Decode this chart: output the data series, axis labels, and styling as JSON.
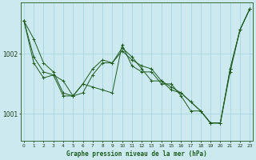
{
  "title": "Graphe pression niveau de la mer (hPa)",
  "background_color": "#cce9f0",
  "grid_color": "#a8d8e0",
  "line_color": "#1e5c1e",
  "x_ticks": [
    0,
    1,
    2,
    3,
    4,
    5,
    6,
    7,
    8,
    9,
    10,
    11,
    12,
    13,
    14,
    15,
    16,
    17,
    18,
    19,
    20,
    21,
    22,
    23
  ],
  "ylim": [
    1000.55,
    1002.85
  ],
  "yticks": [
    1001,
    1002
  ],
  "series": [
    [
      1002.55,
      1002.25,
      1001.85,
      1001.7,
      1001.35,
      1001.3,
      1001.5,
      1001.75,
      1001.9,
      1001.85,
      1002.05,
      1001.9,
      1001.8,
      1001.75,
      1001.55,
      1001.45,
      1001.35,
      1001.2,
      1001.05,
      1000.85,
      1000.85,
      1001.7,
      1002.4,
      1002.75
    ],
    [
      1002.55,
      1001.85,
      1001.6,
      1001.65,
      1001.3,
      1001.3,
      1001.5,
      1001.45,
      1001.4,
      1001.35,
      1002.15,
      1001.8,
      1001.7,
      1001.7,
      1001.5,
      1001.5,
      1001.3,
      1001.05,
      1001.05,
      1000.85,
      1000.85,
      1001.75,
      1002.4,
      1002.75
    ],
    [
      1002.55,
      1001.95,
      1001.7,
      1001.65,
      1001.55,
      1001.3,
      1001.35,
      1001.65,
      1001.85,
      1001.85,
      1002.1,
      1001.95,
      1001.75,
      1001.55,
      1001.55,
      1001.4,
      1001.35,
      1001.2,
      1001.05,
      1000.85,
      1000.85,
      1001.75,
      1002.4,
      1002.75
    ]
  ]
}
